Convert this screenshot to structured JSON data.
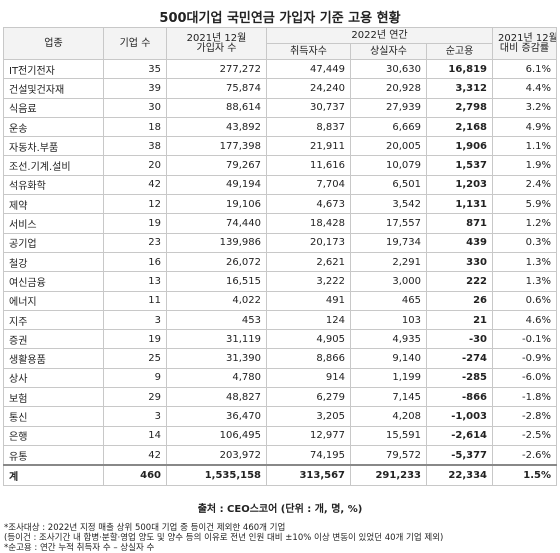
{
  "title": "500대기업 국민연금 가입자 기준 고용 현황",
  "table": {
    "header": {
      "industry": "업종",
      "companies": "기업 수",
      "subscribers": [
        "2021년 12월",
        "가입자 수"
      ],
      "year_group": "2022년 연간",
      "acquired": "취득자수",
      "lost": "상실자수",
      "net": "순고용",
      "change": [
        "2021년 12월",
        "대비 증감률"
      ]
    },
    "rows": [
      [
        "IT전기전자",
        "35",
        "277,272",
        "47,449",
        "30,630",
        "16,819",
        "6.1%"
      ],
      [
        "건설및건자재",
        "39",
        "75,874",
        "24,240",
        "20,928",
        "3,312",
        "4.4%"
      ],
      [
        "식음료",
        "30",
        "88,614",
        "30,737",
        "27,939",
        "2,798",
        "3.2%"
      ],
      [
        "운송",
        "18",
        "43,892",
        "8,837",
        "6,669",
        "2,168",
        "4.9%"
      ],
      [
        "자동차.부품",
        "38",
        "177,398",
        "21,911",
        "20,005",
        "1,906",
        "1.1%"
      ],
      [
        "조선.기계.설비",
        "20",
        "79,267",
        "11,616",
        "10,079",
        "1,537",
        "1.9%"
      ],
      [
        "석유화학",
        "42",
        "49,194",
        "7,704",
        "6,501",
        "1,203",
        "2.4%"
      ],
      [
        "제약",
        "12",
        "19,106",
        "4,673",
        "3,542",
        "1,131",
        "5.9%"
      ],
      [
        "서비스",
        "19",
        "74,440",
        "18,428",
        "17,557",
        "871",
        "1.2%"
      ],
      [
        "공기업",
        "23",
        "139,986",
        "20,173",
        "19,734",
        "439",
        "0.3%"
      ],
      [
        "철강",
        "16",
        "26,072",
        "2,621",
        "2,291",
        "330",
        "1.3%"
      ],
      [
        "여신금융",
        "13",
        "16,515",
        "3,222",
        "3,000",
        "222",
        "1.3%"
      ],
      [
        "에너지",
        "11",
        "4,022",
        "491",
        "465",
        "26",
        "0.6%"
      ],
      [
        "지주",
        "3",
        "453",
        "124",
        "103",
        "21",
        "4.6%"
      ],
      [
        "증권",
        "19",
        "31,119",
        "4,905",
        "4,935",
        "-30",
        "-0.1%"
      ],
      [
        "생활용품",
        "25",
        "31,390",
        "8,866",
        "9,140",
        "-274",
        "-0.9%"
      ],
      [
        "상사",
        "9",
        "4,780",
        "914",
        "1,199",
        "-285",
        "-6.0%"
      ],
      [
        "보험",
        "29",
        "48,827",
        "6,279",
        "7,145",
        "-866",
        "-1.8%"
      ],
      [
        "통신",
        "3",
        "36,470",
        "3,205",
        "4,208",
        "-1,003",
        "-2.8%"
      ],
      [
        "은행",
        "14",
        "106,495",
        "12,977",
        "15,591",
        "-2,614",
        "-2.5%"
      ],
      [
        "유통",
        "42",
        "203,972",
        "74,195",
        "79,572",
        "-5,377",
        "-2.6%"
      ]
    ],
    "total": [
      "계",
      "460",
      "1,535,158",
      "313,567",
      "291,233",
      "22,334",
      "1.5%"
    ]
  },
  "source": "출처 : CEO스코어 (단위 : 개, 명, %)",
  "notes": [
    "*조사대상 : 2022년 지정 매출 상위 500대 기업 중 등이건 제외한 460개 기업",
    "(등이건 : 조사기간 내 합병·분할·영업 양도 및 양수 등의 이유로 전년 인원 대비 ±10% 이상 변동이 있었던 40개 기업 제외)",
    "*순고용 : 연간 누적 취득자 수 – 상실자 수"
  ]
}
